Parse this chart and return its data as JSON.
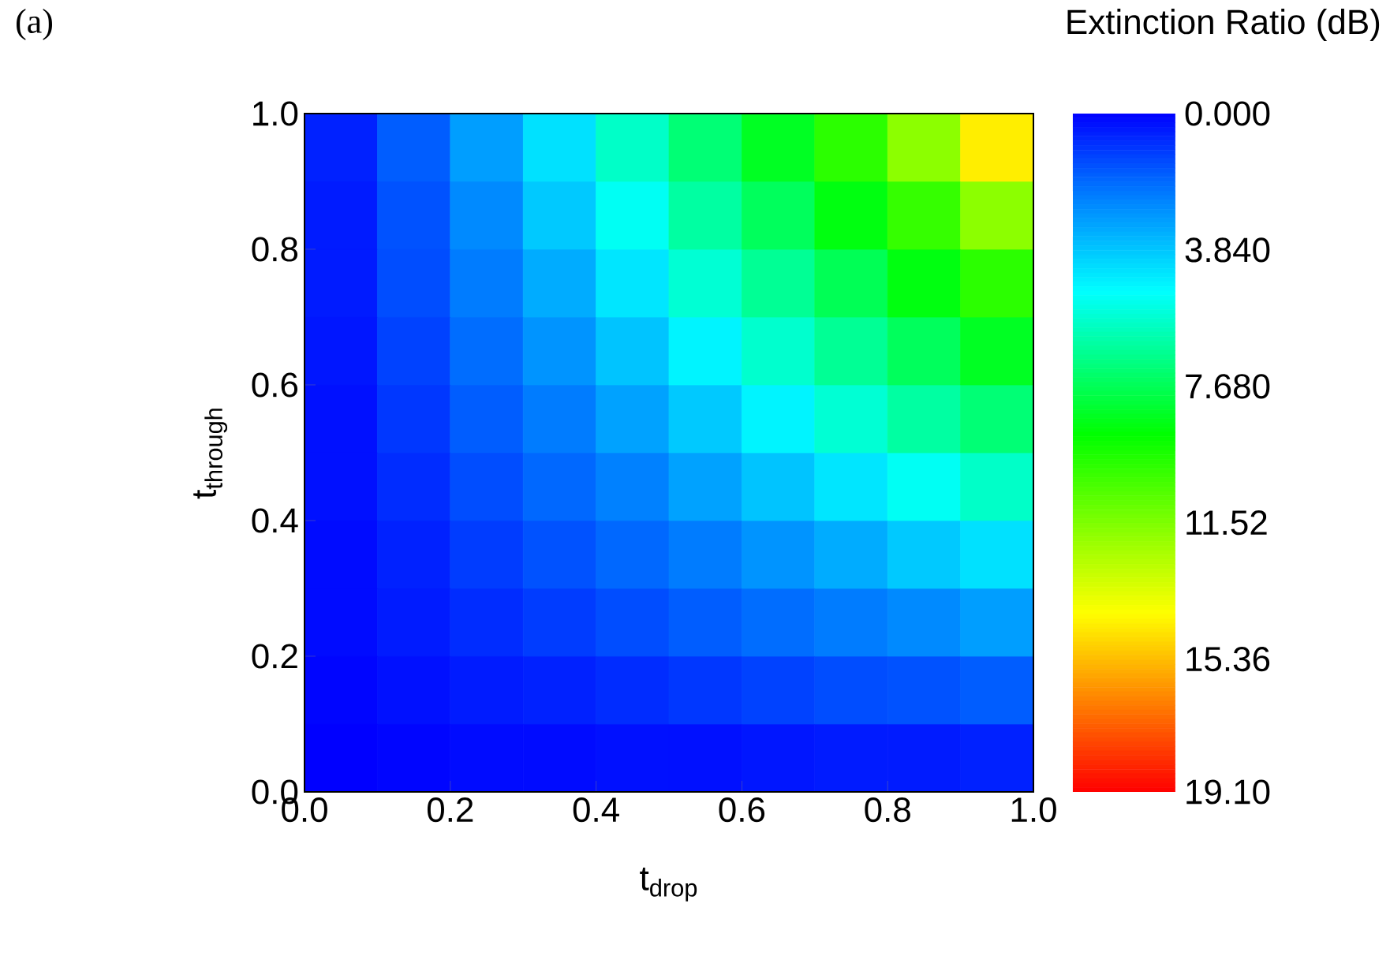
{
  "chart_data": {
    "type": "heatmap",
    "xlabel": "t$_{drop}$",
    "ylabel": "t$_{through}$",
    "clabel": "Extinction Ratio (dB)",
    "annotations": [
      "(a)"
    ],
    "x": [
      0.05,
      0.15,
      0.25,
      0.35,
      0.45,
      0.55,
      0.65,
      0.75,
      0.85,
      0.95
    ],
    "y": [
      0.95,
      0.85,
      0.75,
      0.65,
      0.55,
      0.45,
      0.35,
      0.25,
      0.15,
      0.05
    ],
    "xlim": [
      0,
      1
    ],
    "ylim": [
      0,
      1
    ],
    "xticks": [
      {
        "value": 0,
        "label": "0.0"
      },
      0.2,
      0.4,
      0.6,
      0.8,
      {
        "value": 1,
        "label": "1.0"
      }
    ],
    "yticks": [
      {
        "value": 0,
        "label": "0.0"
      },
      0.2,
      0.4,
      0.6,
      0.8,
      {
        "value": 1,
        "label": "1.0"
      }
    ],
    "clim": [
      0,
      19.1
    ],
    "cticks": [
      {
        "value": 0,
        "label": "0.000"
      },
      {
        "value": 3.84,
        "label": "3.840"
      },
      {
        "value": 7.68,
        "label": "7.680"
      },
      11.52,
      15.36,
      {
        "value": 19.1,
        "label": "19.10"
      }
    ],
    "cells": [
      [
        0.6,
        1.7,
        3.0,
        4.4,
        5.9,
        7.2,
        8.5,
        9.9,
        11.8,
        14.4
      ],
      [
        0.5,
        1.5,
        2.6,
        3.9,
        5.2,
        6.5,
        7.6,
        8.8,
        10.1,
        11.8
      ],
      [
        0.5,
        1.4,
        2.3,
        3.3,
        4.5,
        5.7,
        6.7,
        7.7,
        8.8,
        9.9
      ],
      [
        0.4,
        1.2,
        2.0,
        2.8,
        3.8,
        4.8,
        5.8,
        6.7,
        7.6,
        8.5
      ],
      [
        0.3,
        1.0,
        1.7,
        2.3,
        3.1,
        3.9,
        4.8,
        5.7,
        6.5,
        7.2
      ],
      [
        0.3,
        0.8,
        1.4,
        1.9,
        2.4,
        3.1,
        3.8,
        4.5,
        5.2,
        5.9
      ],
      [
        0.2,
        0.6,
        1.1,
        1.5,
        1.9,
        2.3,
        2.8,
        3.3,
        3.9,
        4.4
      ],
      [
        0.2,
        0.5,
        0.8,
        1.1,
        1.4,
        1.7,
        2.0,
        2.3,
        2.6,
        3.0
      ],
      [
        0.1,
        0.3,
        0.5,
        0.6,
        0.8,
        1.0,
        1.2,
        1.4,
        1.5,
        1.7
      ],
      [
        0.0,
        0.1,
        0.2,
        0.2,
        0.3,
        0.3,
        0.4,
        0.5,
        0.5,
        0.6
      ]
    ]
  }
}
